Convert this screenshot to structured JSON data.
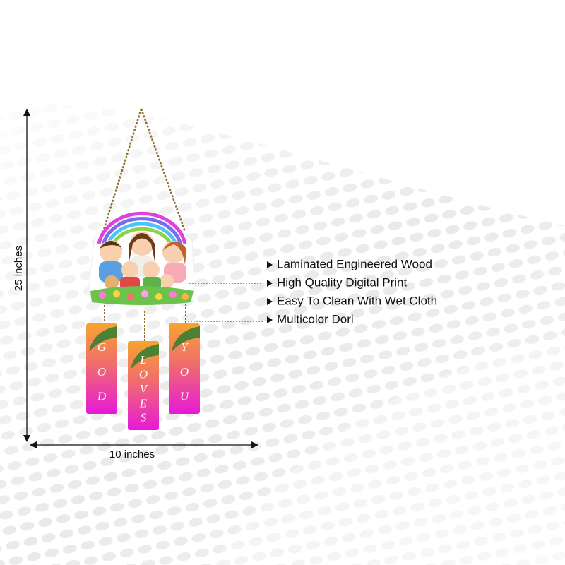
{
  "dimensions": {
    "height": "25 inches",
    "width": "10 inches"
  },
  "features": [
    "Laminated Engineered Wood",
    "High Quality Digital Print",
    "Easy To Clean With Wet Cloth",
    "Multicolor Dori"
  ],
  "tags": [
    {
      "letters": [
        "G",
        "O",
        "D"
      ]
    },
    {
      "letters": [
        "L",
        "O",
        "V",
        "E",
        "S"
      ]
    },
    {
      "letters": [
        "Y",
        "O",
        "U"
      ]
    }
  ]
}
